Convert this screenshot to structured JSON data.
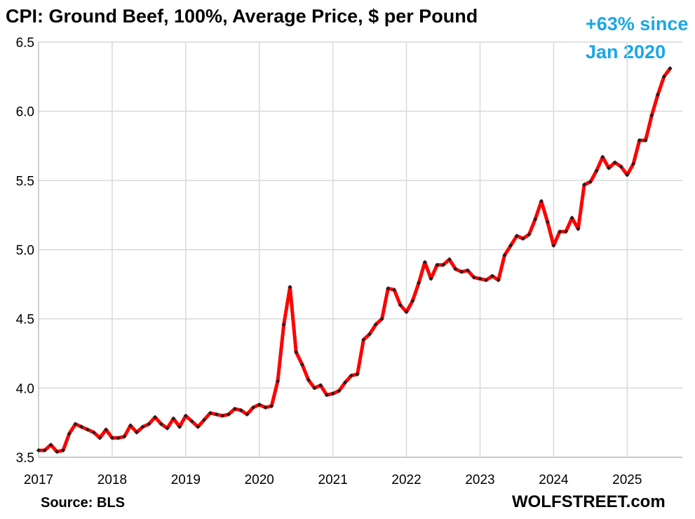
{
  "header": {
    "title": "CPI: Ground Beef, 100%, Average Price, $ per Pound"
  },
  "annotation": {
    "line1": "+63% since",
    "line2": "Jan 2020"
  },
  "footer": {
    "source": "Source: BLS",
    "brand": "WOLFSTREET.com"
  },
  "colors": {
    "line": "#ff0000",
    "marker": "#222222",
    "grid": "#d9d9d9",
    "annotation": "#1aa7e6"
  },
  "chart_data": {
    "type": "line",
    "title": "CPI: Ground Beef, 100%, Average Price, $ per Pound",
    "xlabel": "",
    "ylabel": "",
    "ylim": [
      3.5,
      6.5
    ],
    "xlim": [
      2017.0,
      2025.75
    ],
    "grid": true,
    "x_ticks": [
      "2017",
      "2018",
      "2019",
      "2020",
      "2021",
      "2022",
      "2023",
      "2024",
      "2025"
    ],
    "y_ticks": [
      "3.5",
      "4.0",
      "4.5",
      "5.0",
      "5.5",
      "6.0",
      "6.5"
    ],
    "series": [
      {
        "start": "2017-01",
        "frequency": "monthly",
        "values": [
          3.55,
          3.55,
          3.59,
          3.54,
          3.55,
          3.67,
          3.74,
          3.72,
          3.7,
          3.68,
          3.64,
          3.7,
          3.64,
          3.64,
          3.65,
          3.73,
          3.68,
          3.72,
          3.74,
          3.79,
          3.74,
          3.71,
          3.78,
          3.72,
          3.8,
          3.76,
          3.72,
          3.77,
          3.82,
          3.81,
          3.8,
          3.81,
          3.85,
          3.84,
          3.81,
          3.86,
          3.88,
          3.86,
          3.87,
          4.05,
          4.46,
          4.73,
          4.26,
          4.17,
          4.06,
          4.0,
          4.02,
          3.95,
          3.96,
          3.98,
          4.04,
          4.09,
          4.1,
          4.35,
          4.39,
          4.46,
          4.5,
          4.72,
          4.71,
          4.6,
          4.55,
          4.63,
          4.76,
          4.91,
          4.79,
          4.89,
          4.89,
          4.93,
          4.86,
          4.84,
          4.85,
          4.8,
          4.79,
          4.78,
          4.81,
          4.78,
          4.96,
          5.03,
          5.1,
          5.08,
          5.11,
          5.22,
          5.35,
          5.2,
          5.03,
          5.13,
          5.13,
          5.23,
          5.15,
          5.47,
          5.49,
          5.57,
          5.67,
          5.59,
          5.63,
          5.6,
          5.54,
          5.62,
          5.79,
          5.79,
          5.97,
          6.12,
          6.25,
          6.31
        ]
      }
    ]
  }
}
